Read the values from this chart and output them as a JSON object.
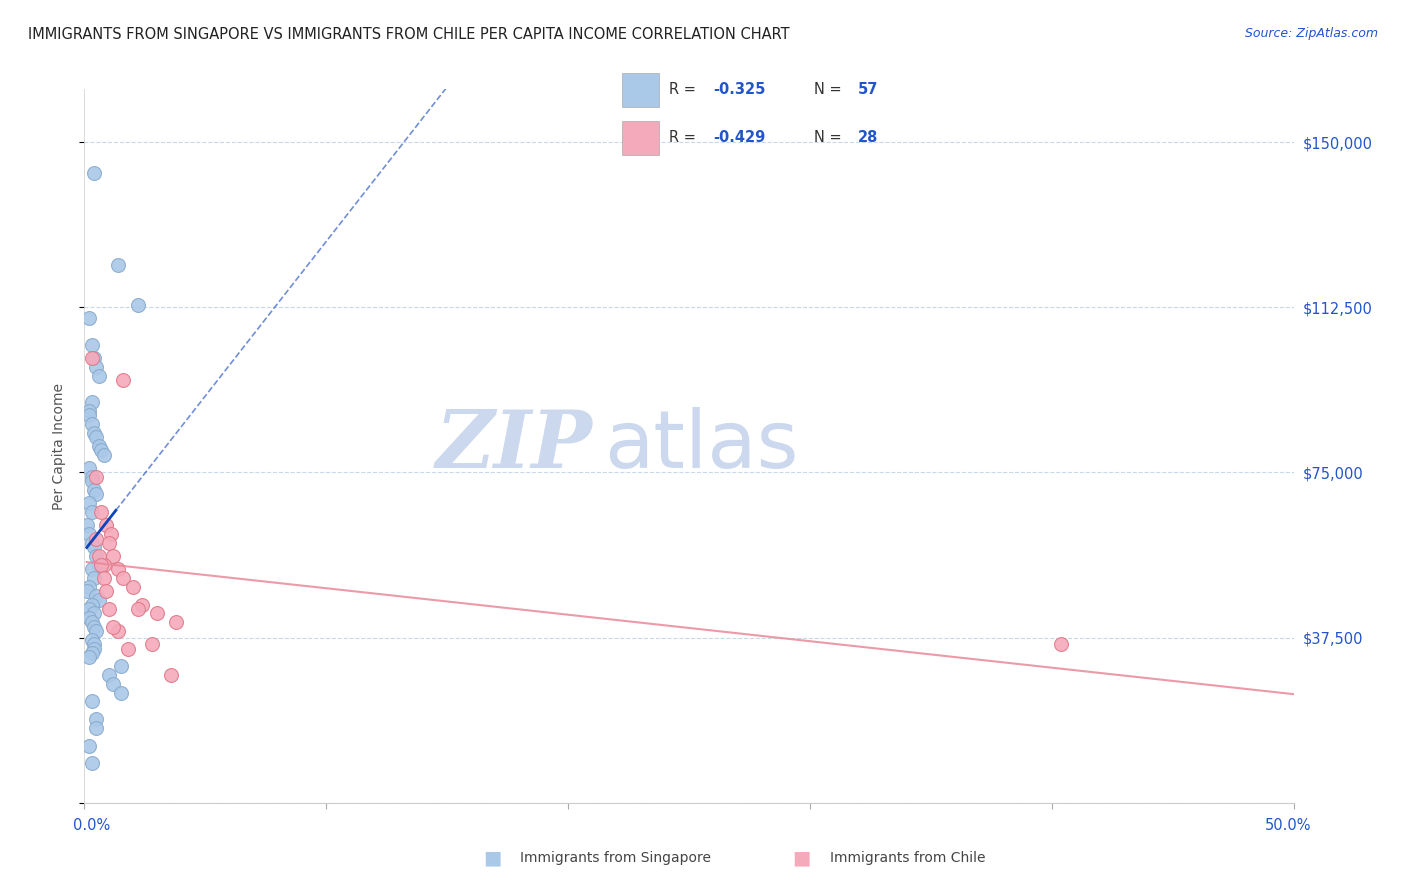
{
  "title": "IMMIGRANTS FROM SINGAPORE VS IMMIGRANTS FROM CHILE PER CAPITA INCOME CORRELATION CHART",
  "source": "Source: ZipAtlas.com",
  "ylabel": "Per Capita Income",
  "yticks": [
    0,
    37500,
    75000,
    112500,
    150000
  ],
  "ytick_labels": [
    "",
    "$37,500",
    "$75,000",
    "$112,500",
    "$150,000"
  ],
  "xlim": [
    0.0,
    0.5
  ],
  "ylim": [
    0,
    162000
  ],
  "singapore_color": "#aac8e8",
  "chile_color": "#f5aabb",
  "singapore_edge": "#88aacc",
  "chile_edge": "#e07888",
  "trend_singapore_color": "#1144bb",
  "trend_chile_color": "#e88898",
  "legend_R_singapore": "-0.325",
  "legend_N_singapore": "57",
  "legend_R_chile": "-0.429",
  "legend_N_chile": "28",
  "watermark_zip": "ZIP",
  "watermark_atlas": "atlas",
  "watermark_color": "#ccd8ee",
  "text_blue": "#2255cc",
  "grid_color": "#c8d8e8",
  "singapore_x": [
    0.004,
    0.014,
    0.022,
    0.002,
    0.003,
    0.004,
    0.005,
    0.006,
    0.003,
    0.002,
    0.002,
    0.003,
    0.004,
    0.005,
    0.006,
    0.007,
    0.008,
    0.002,
    0.003,
    0.003,
    0.004,
    0.005,
    0.002,
    0.003,
    0.001,
    0.002,
    0.003,
    0.004,
    0.005,
    0.006,
    0.003,
    0.004,
    0.002,
    0.001,
    0.005,
    0.006,
    0.003,
    0.002,
    0.004,
    0.002,
    0.003,
    0.004,
    0.005,
    0.003,
    0.004,
    0.004,
    0.003,
    0.002,
    0.015,
    0.01,
    0.012,
    0.015,
    0.003,
    0.005,
    0.005,
    0.002,
    0.003
  ],
  "singapore_y": [
    143000,
    122000,
    113000,
    110000,
    104000,
    101000,
    99000,
    97000,
    91000,
    89000,
    88000,
    86000,
    84000,
    83000,
    81000,
    80000,
    79000,
    76000,
    74000,
    73000,
    71000,
    70000,
    68000,
    66000,
    63000,
    61000,
    59000,
    58000,
    56000,
    54000,
    53000,
    51000,
    49000,
    48000,
    47000,
    46000,
    45000,
    44000,
    43000,
    42000,
    41000,
    40000,
    39000,
    37000,
    36000,
    35000,
    34000,
    33000,
    31000,
    29000,
    27000,
    25000,
    23000,
    19000,
    17000,
    13000,
    9000
  ],
  "chile_x": [
    0.003,
    0.016,
    0.005,
    0.007,
    0.009,
    0.011,
    0.01,
    0.012,
    0.008,
    0.014,
    0.016,
    0.02,
    0.024,
    0.03,
    0.038,
    0.014,
    0.018,
    0.022,
    0.028,
    0.036,
    0.404,
    0.005,
    0.006,
    0.007,
    0.008,
    0.009,
    0.01,
    0.012
  ],
  "chile_y": [
    101000,
    96000,
    74000,
    66000,
    63000,
    61000,
    59000,
    56000,
    54000,
    53000,
    51000,
    49000,
    45000,
    43000,
    41000,
    39000,
    35000,
    44000,
    36000,
    29000,
    36000,
    60000,
    56000,
    54000,
    51000,
    48000,
    44000,
    40000
  ]
}
